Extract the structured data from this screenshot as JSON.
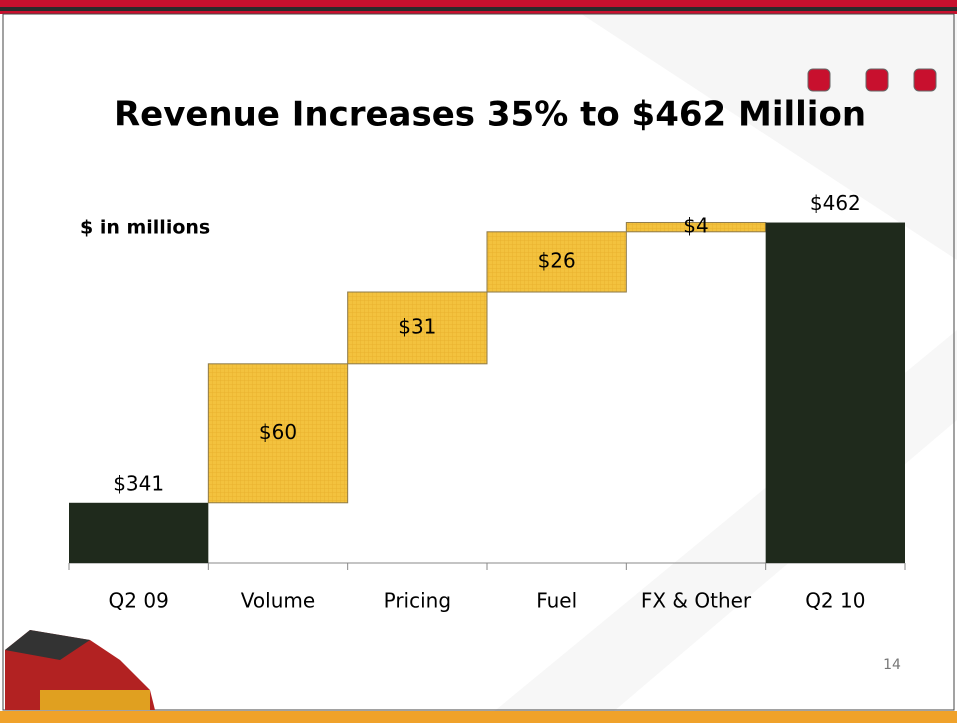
{
  "chart_data": {
    "type": "waterfall",
    "title": "Revenue Increases 35% to $462 Million",
    "subtitle": "$ in millions",
    "categories": [
      "Q2 09",
      "Volume",
      "Pricing",
      "Fuel",
      "FX & Other",
      "Q2 10"
    ],
    "values": [
      341,
      60,
      31,
      26,
      4,
      462
    ],
    "value_labels": [
      "$341",
      "$60",
      "$31",
      "$26",
      "$4",
      "$462"
    ],
    "total_color": "#1f2a1c",
    "increase_color": "#f3c23e",
    "ylim": [
      315,
      470
    ]
  },
  "page_number": "14"
}
